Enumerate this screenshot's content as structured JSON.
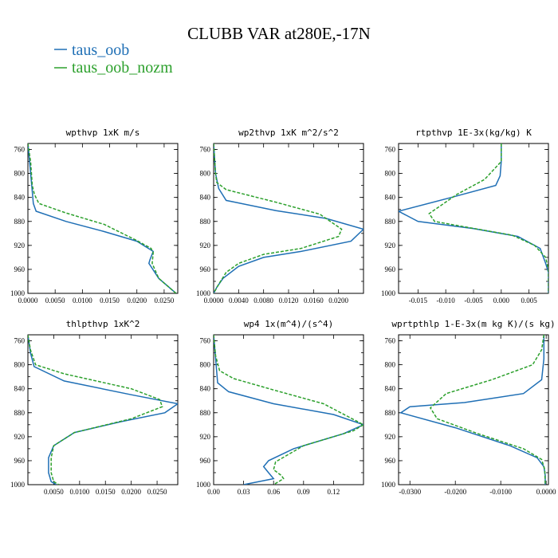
{
  "figure": {
    "title": "CLUBB VAR at280E,-17N"
  },
  "legend": [
    {
      "label": "taus_oob",
      "color": "#1f6fb5"
    },
    {
      "label": "taus_oob_nozm",
      "color": "#2ca02c"
    }
  ],
  "chart_data": [
    {
      "type": "line",
      "title": "wpthvp   1xK m/s",
      "xlim": [
        0,
        0.0275
      ],
      "ylim": [
        1000,
        750
      ],
      "xticks": [
        0,
        0.005,
        0.01,
        0.015,
        0.02,
        0.025
      ],
      "xtick_labels": [
        "0.0000",
        "0.0050",
        "0.0100",
        "0.0150",
        "0.0200",
        "0.0250"
      ],
      "yticks": [
        760,
        800,
        840,
        880,
        920,
        960,
        1000
      ],
      "series": [
        {
          "name": "taus_oob",
          "x": [
            0.0,
            0.0003,
            0.0007,
            0.001,
            0.0015,
            0.007,
            0.014,
            0.02,
            0.023,
            0.0224,
            0.0222,
            0.024,
            0.0272
          ],
          "y": [
            750,
            780,
            820,
            850,
            863,
            880,
            897,
            913,
            930,
            944,
            950,
            975,
            1000
          ]
        },
        {
          "name": "taus_oob_nozm",
          "x": [
            0.0,
            0.0005,
            0.0008,
            0.0012,
            0.002,
            0.007,
            0.014,
            0.02,
            0.0226,
            0.023,
            0.0228,
            0.024,
            0.0272
          ],
          "y": [
            750,
            780,
            820,
            835,
            850,
            866,
            885,
            912,
            925,
            932,
            950,
            975,
            1000
          ]
        }
      ]
    },
    {
      "type": "line",
      "title": "wp2thvp   1xK m^2/s^2",
      "xlim": [
        0,
        0.024
      ],
      "ylim": [
        1000,
        750
      ],
      "xticks": [
        0,
        0.004,
        0.008,
        0.012,
        0.016,
        0.02
      ],
      "xtick_labels": [
        "0.0000",
        "0.0040",
        "0.0080",
        "0.0120",
        "0.0160",
        "0.0200"
      ],
      "yticks": [
        760,
        800,
        840,
        880,
        920,
        960,
        1000
      ],
      "series": [
        {
          "name": "taus_oob",
          "x": [
            0.0,
            0.0003,
            0.0008,
            0.002,
            0.01,
            0.018,
            0.024,
            0.022,
            0.014,
            0.008,
            0.004,
            0.0015,
            0.0005,
            0.0
          ],
          "y": [
            750,
            800,
            825,
            845,
            862,
            875,
            893,
            913,
            930,
            940,
            955,
            975,
            990,
            1000
          ]
        },
        {
          "name": "taus_oob_nozm",
          "x": [
            0.0,
            0.0003,
            0.0005,
            0.002,
            0.01,
            0.017,
            0.0205,
            0.02,
            0.014,
            0.008,
            0.004,
            0.002,
            0.0008,
            0.0
          ],
          "y": [
            750,
            800,
            815,
            827,
            848,
            868,
            893,
            905,
            925,
            935,
            950,
            965,
            985,
            1000
          ]
        }
      ]
    },
    {
      "type": "line",
      "title": "rtpthvp   1E-3x(kg/kg) K",
      "xlim": [
        -0.0185,
        0.0085
      ],
      "ylim": [
        1000,
        750
      ],
      "xticks": [
        -0.015,
        -0.01,
        -0.005,
        0,
        0.005
      ],
      "xtick_labels": [
        "-0.015",
        "-0.010",
        "-0.005",
        "0.000",
        "0.005"
      ],
      "yticks": [
        760,
        800,
        840,
        880,
        920,
        960,
        1000
      ],
      "series": [
        {
          "name": "taus_oob",
          "x": [
            0.0,
            0.0,
            -0.0002,
            -0.001,
            -0.009,
            -0.0185,
            -0.015,
            -0.005,
            0.003,
            0.007,
            0.008,
            0.0085,
            0.0085,
            0.0085
          ],
          "y": [
            750,
            780,
            804,
            820,
            840,
            863,
            880,
            892,
            905,
            925,
            950,
            965,
            985,
            1000
          ]
        },
        {
          "name": "taus_oob_nozm",
          "x": [
            0.0,
            0.0,
            -0.003,
            -0.008,
            -0.013,
            -0.012,
            -0.006,
            0.002,
            0.006,
            0.008,
            0.0085,
            0.0085,
            0.0085
          ],
          "y": [
            750,
            780,
            810,
            835,
            867,
            880,
            890,
            903,
            920,
            940,
            960,
            980,
            1000
          ]
        }
      ]
    },
    {
      "type": "line",
      "title": "thlpthvp   1xK^2",
      "xlim": [
        0,
        0.029
      ],
      "ylim": [
        1000,
        750
      ],
      "xticks": [
        0.005,
        0.01,
        0.015,
        0.02,
        0.025
      ],
      "xtick_labels": [
        "0.0050",
        "0.0100",
        "0.0150",
        "0.0200",
        "0.0250"
      ],
      "yticks": [
        760,
        800,
        840,
        880,
        920,
        960,
        1000
      ],
      "series": [
        {
          "name": "taus_oob",
          "x": [
            0.0,
            0.0005,
            0.0012,
            0.007,
            0.02,
            0.029,
            0.0265,
            0.018,
            0.009,
            0.005,
            0.004,
            0.004,
            0.0045,
            0.0055
          ],
          "y": [
            750,
            780,
            803,
            827,
            850,
            865,
            880,
            895,
            913,
            935,
            955,
            980,
            995,
            1000
          ]
        },
        {
          "name": "taus_oob_nozm",
          "x": [
            0.0,
            0.0005,
            0.0015,
            0.007,
            0.02,
            0.0255,
            0.026,
            0.02,
            0.009,
            0.005,
            0.0045,
            0.0045,
            0.005,
            0.006
          ],
          "y": [
            750,
            775,
            800,
            815,
            840,
            858,
            870,
            890,
            913,
            935,
            955,
            980,
            995,
            1000
          ]
        }
      ]
    },
    {
      "type": "line",
      "title": "wp4   1x(m^4)/(s^4)",
      "xlim": [
        0,
        0.15
      ],
      "ylim": [
        1000,
        750
      ],
      "xticks": [
        0,
        0.03,
        0.06,
        0.09,
        0.12
      ],
      "xtick_labels": [
        "0.00",
        "0.03",
        "0.06",
        "0.09",
        "0.12"
      ],
      "yticks": [
        760,
        800,
        840,
        880,
        920,
        960,
        1000
      ],
      "series": [
        {
          "name": "taus_oob",
          "x": [
            0.0,
            0.002,
            0.004,
            0.015,
            0.06,
            0.12,
            0.15,
            0.13,
            0.08,
            0.055,
            0.05,
            0.055,
            0.06,
            0.03
          ],
          "y": [
            750,
            790,
            830,
            845,
            865,
            883,
            900,
            915,
            940,
            960,
            970,
            980,
            990,
            1000
          ]
        },
        {
          "name": "taus_oob_nozm",
          "x": [
            0.0,
            0.002,
            0.006,
            0.02,
            0.06,
            0.11,
            0.15,
            0.14,
            0.09,
            0.062,
            0.06,
            0.068,
            0.07,
            0.06
          ],
          "y": [
            750,
            785,
            810,
            823,
            842,
            865,
            900,
            910,
            935,
            962,
            975,
            985,
            990,
            1000
          ]
        }
      ]
    },
    {
      "type": "line",
      "title": "wprtpthlp   1-E-3x(m kg K)/(s kg)",
      "xlim": [
        -0.0325,
        0.0005
      ],
      "ylim": [
        1000,
        750
      ],
      "xticks": [
        -0.03,
        -0.02,
        -0.01,
        0
      ],
      "xtick_labels": [
        "-0.0300",
        "-0.0200",
        "-0.0100",
        "0.0000"
      ],
      "yticks": [
        760,
        800,
        840,
        880,
        920,
        960,
        1000
      ],
      "series": [
        {
          "name": "taus_oob",
          "x": [
            -0.0005,
            -0.0005,
            -0.001,
            -0.005,
            -0.018,
            -0.03,
            -0.032,
            -0.02,
            -0.008,
            -0.002,
            -0.0005,
            -0.0002,
            -0.0002
          ],
          "y": [
            750,
            790,
            825,
            848,
            863,
            870,
            880,
            905,
            935,
            955,
            970,
            985,
            1000
          ]
        },
        {
          "name": "taus_oob_nozm",
          "x": [
            -0.0005,
            -0.001,
            -0.003,
            -0.012,
            -0.022,
            -0.0255,
            -0.024,
            -0.015,
            -0.005,
            -0.001,
            -0.0003,
            -0.0002
          ],
          "y": [
            750,
            775,
            800,
            825,
            848,
            872,
            890,
            915,
            940,
            958,
            975,
            1000
          ]
        }
      ]
    }
  ]
}
